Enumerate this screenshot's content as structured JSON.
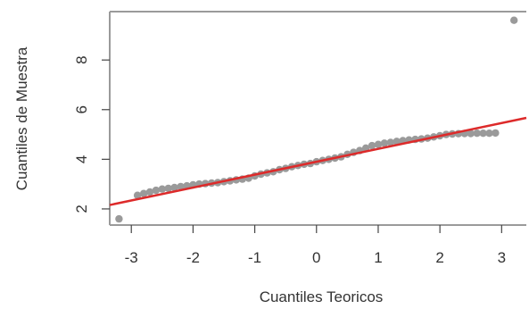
{
  "chart_data": {
    "type": "scatter",
    "subtype": "qq-plot",
    "title": "",
    "xlabel": "Cuantiles Teoricos",
    "ylabel": "Cuantiles de Muestra",
    "xlim": [
      -3.35,
      3.4
    ],
    "ylim": [
      1.35,
      9.95
    ],
    "x_ticks": [
      -3,
      -2,
      -1,
      0,
      1,
      2,
      3
    ],
    "x_tick_labels": [
      "-3",
      "-2",
      "-1",
      "0",
      "1",
      "2",
      "3"
    ],
    "y_ticks": [
      2,
      4,
      6,
      8
    ],
    "y_tick_labels": [
      "2",
      "4",
      "6",
      "8"
    ],
    "grid": false,
    "legend": "none",
    "points_color": "#9a9a9a",
    "line_color": "#dd2a2a",
    "reference_line": {
      "intercept": 3.9,
      "slope": 0.52
    },
    "points": [
      [
        -3.2,
        1.6
      ],
      [
        -2.9,
        2.55
      ],
      [
        -2.8,
        2.62
      ],
      [
        -2.7,
        2.68
      ],
      [
        -2.6,
        2.75
      ],
      [
        -2.5,
        2.8
      ],
      [
        -2.4,
        2.83
      ],
      [
        -2.3,
        2.86
      ],
      [
        -2.2,
        2.9
      ],
      [
        -2.1,
        2.93
      ],
      [
        -2.0,
        2.97
      ],
      [
        -1.9,
        3.0
      ],
      [
        -1.8,
        3.02
      ],
      [
        -1.7,
        3.04
      ],
      [
        -1.6,
        3.06
      ],
      [
        -1.5,
        3.1
      ],
      [
        -1.4,
        3.13
      ],
      [
        -1.3,
        3.17
      ],
      [
        -1.2,
        3.2
      ],
      [
        -1.1,
        3.24
      ],
      [
        -1.0,
        3.33
      ],
      [
        -0.9,
        3.4
      ],
      [
        -0.8,
        3.45
      ],
      [
        -0.7,
        3.5
      ],
      [
        -0.6,
        3.58
      ],
      [
        -0.5,
        3.63
      ],
      [
        -0.4,
        3.7
      ],
      [
        -0.3,
        3.75
      ],
      [
        -0.2,
        3.8
      ],
      [
        -0.1,
        3.83
      ],
      [
        0.0,
        3.9
      ],
      [
        0.1,
        3.95
      ],
      [
        0.2,
        4.0
      ],
      [
        0.3,
        4.05
      ],
      [
        0.4,
        4.1
      ],
      [
        0.5,
        4.2
      ],
      [
        0.6,
        4.28
      ],
      [
        0.7,
        4.35
      ],
      [
        0.8,
        4.45
      ],
      [
        0.9,
        4.55
      ],
      [
        1.0,
        4.6
      ],
      [
        1.1,
        4.65
      ],
      [
        1.2,
        4.68
      ],
      [
        1.3,
        4.72
      ],
      [
        1.4,
        4.75
      ],
      [
        1.5,
        4.78
      ],
      [
        1.6,
        4.8
      ],
      [
        1.7,
        4.82
      ],
      [
        1.8,
        4.85
      ],
      [
        1.9,
        4.9
      ],
      [
        2.0,
        4.95
      ],
      [
        2.1,
        5.0
      ],
      [
        2.2,
        5.02
      ],
      [
        2.3,
        5.03
      ],
      [
        2.4,
        5.04
      ],
      [
        2.5,
        5.04
      ],
      [
        2.6,
        5.05
      ],
      [
        2.7,
        5.05
      ],
      [
        2.8,
        5.05
      ],
      [
        2.9,
        5.06
      ],
      [
        3.2,
        9.6
      ]
    ]
  }
}
